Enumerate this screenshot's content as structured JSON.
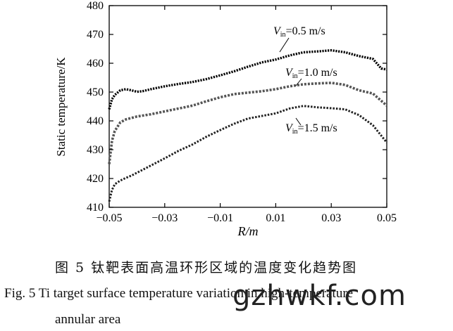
{
  "chart_data": {
    "type": "line",
    "xlabel": "R/m",
    "ylabel": "Static temperature/K",
    "xlim": [
      -0.05,
      0.05
    ],
    "ylim": [
      410,
      480
    ],
    "xticks": [
      -0.05,
      -0.03,
      -0.01,
      0.01,
      0.03,
      0.05
    ],
    "xtick_labels": [
      "−0.05",
      "−0.03",
      "−0.01",
      "0.01",
      "0.03",
      "0.05"
    ],
    "yticks": [
      410,
      420,
      430,
      440,
      450,
      460,
      470,
      480
    ],
    "ytick_labels": [
      "410",
      "420",
      "430",
      "440",
      "450",
      "460",
      "470",
      "480"
    ],
    "grid": false,
    "series": [
      {
        "name": "V_in=0.5 m/s",
        "label_main": "V",
        "label_sub": "in",
        "label_rest": "=0.5 m/s",
        "color": "#000000",
        "x": [
          -0.05,
          -0.049,
          -0.048,
          -0.046,
          -0.044,
          -0.042,
          -0.04,
          -0.038,
          -0.035,
          -0.03,
          -0.025,
          -0.02,
          -0.015,
          -0.01,
          -0.005,
          0,
          0.005,
          0.01,
          0.015,
          0.02,
          0.025,
          0.03,
          0.035,
          0.04,
          0.045,
          0.048,
          0.05
        ],
        "y": [
          444,
          447.5,
          449,
          450.6,
          451,
          450.6,
          450.1,
          450.3,
          451,
          452,
          452.8,
          453.5,
          454.5,
          455.8,
          457.2,
          458.8,
          460.3,
          461.3,
          462.7,
          463.8,
          464.1,
          464.5,
          463.8,
          462.5,
          461.5,
          458.2,
          457.8
        ]
      },
      {
        "name": "V_in=1.0 m/s",
        "label_main": "V",
        "label_sub": "in",
        "label_rest": "=1.0 m/s",
        "color": "#555555",
        "x": [
          -0.05,
          -0.049,
          -0.048,
          -0.046,
          -0.044,
          -0.042,
          -0.04,
          -0.035,
          -0.03,
          -0.025,
          -0.02,
          -0.015,
          -0.01,
          -0.005,
          0,
          0.005,
          0.01,
          0.015,
          0.02,
          0.025,
          0.03,
          0.035,
          0.04,
          0.045,
          0.05
        ],
        "y": [
          425,
          433,
          436.5,
          439.5,
          440.5,
          441,
          441.5,
          442.3,
          443.3,
          444.3,
          445.3,
          446.8,
          448.2,
          449.3,
          449.8,
          450.3,
          451,
          452,
          452.7,
          453,
          453.2,
          452.5,
          450.6,
          449.5,
          445.3
        ]
      },
      {
        "name": "V_in=1.5 m/s",
        "label_main": "V",
        "label_sub": "in",
        "label_rest": "=1.5 m/s",
        "color": "#222222",
        "x": [
          -0.05,
          -0.049,
          -0.048,
          -0.046,
          -0.044,
          -0.042,
          -0.04,
          -0.035,
          -0.03,
          -0.025,
          -0.02,
          -0.015,
          -0.01,
          -0.005,
          0,
          0.005,
          0.01,
          0.015,
          0.02,
          0.025,
          0.03,
          0.035,
          0.04,
          0.045,
          0.05
        ],
        "y": [
          412,
          416,
          418,
          419.3,
          420.2,
          421,
          422,
          424.5,
          427,
          429.6,
          431.8,
          434.5,
          436.8,
          439,
          440.8,
          441.7,
          442.6,
          444.3,
          445.2,
          444.7,
          444.4,
          444,
          442,
          438.5,
          432.5
        ]
      }
    ]
  },
  "caption": {
    "zh": "图 5    钛靶表面高温环形区域的温度变化趋势图",
    "en_line1": "Fig. 5    Ti target surface temperature variation in high-temperature",
    "en_line2": "annular area"
  },
  "watermark": "gzhwkf.com"
}
